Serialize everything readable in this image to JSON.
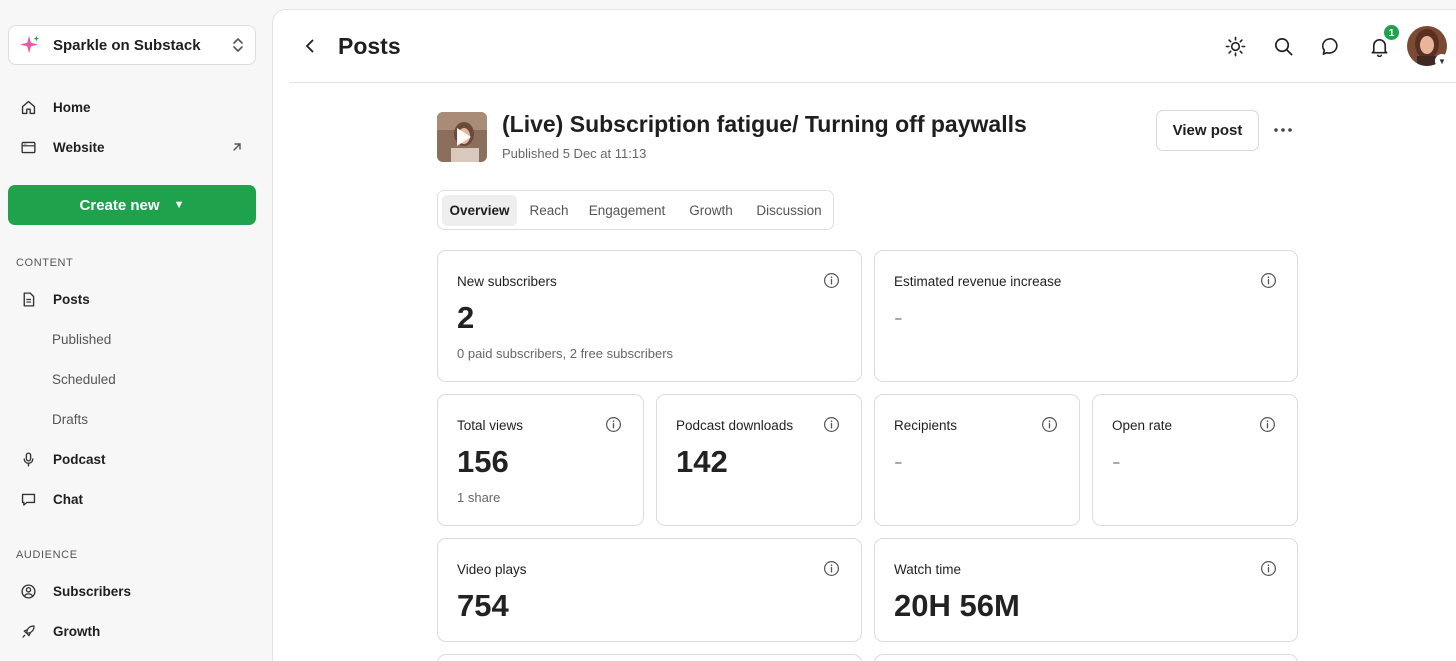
{
  "sidebar": {
    "publication": "Sparkle on Substack",
    "nav_top": [
      {
        "label": "Home",
        "icon": "home-icon"
      },
      {
        "label": "Website",
        "icon": "website-icon"
      }
    ],
    "create_button": "Create new",
    "content_section": "CONTENT",
    "content_items": [
      {
        "label": "Posts",
        "icon": "document-icon"
      },
      {
        "label": "Podcast",
        "icon": "microphone-icon"
      },
      {
        "label": "Chat",
        "icon": "chat-icon"
      }
    ],
    "posts_subitems": [
      "Published",
      "Scheduled",
      "Drafts"
    ],
    "audience_section": "AUDIENCE",
    "audience_items": [
      {
        "label": "Subscribers",
        "icon": "user-circle-icon"
      },
      {
        "label": "Growth",
        "icon": "rocket-icon"
      }
    ]
  },
  "header": {
    "title": "Posts",
    "notification_count": "1"
  },
  "post": {
    "title": "(Live) Subscription fatigue/ Turning off paywalls",
    "published": "Published 5 Dec at 11:13",
    "view_button": "View post"
  },
  "tabs": [
    "Overview",
    "Reach",
    "Engagement",
    "Growth",
    "Discussion"
  ],
  "active_tab": "Overview",
  "metrics": {
    "new_subscribers": {
      "label": "New subscribers",
      "value": "2",
      "note": "0 paid subscribers, 2 free subscribers"
    },
    "revenue": {
      "label": "Estimated revenue increase",
      "value": "-"
    },
    "total_views": {
      "label": "Total views",
      "value": "156",
      "note": "1 share"
    },
    "podcast_downloads": {
      "label": "Podcast downloads",
      "value": "142"
    },
    "recipients": {
      "label": "Recipients",
      "value": "-"
    },
    "open_rate": {
      "label": "Open rate",
      "value": "-"
    },
    "video_plays": {
      "label": "Video plays",
      "value": "754"
    },
    "watch_time": {
      "label": "Watch time",
      "value": "20H 56M"
    }
  },
  "colors": {
    "accent": "#1ea34c",
    "badge": "#1ea34c",
    "sparkle": "#e65aa8"
  }
}
